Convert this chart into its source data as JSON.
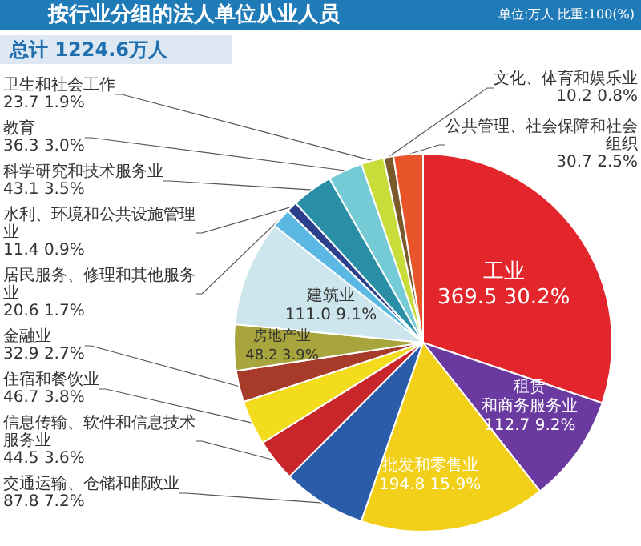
{
  "chart_data": {
    "type": "pie",
    "title": "按行业分组的法人单位从业人员",
    "subtitle": "单位:万人 比重:100(%)",
    "annotations": [
      "总计 1224.6万人"
    ],
    "categories": [
      "工业",
      "租赁和商务服务业",
      "批发和零售业",
      "交通运输、仓储和邮政业",
      "信息传输、软件和信息技术服务业",
      "住宿和餐饮业",
      "金融业",
      "房地产业",
      "建筑业",
      "居民服务、修理和其他服务业",
      "水利、环境和公共设施管理业",
      "科学研究和技术服务业",
      "教育",
      "卫生和社会工作",
      "文化、体育和娱乐业",
      "公共管理、社会保障和社会组织"
    ],
    "values": [
      369.5,
      112.7,
      194.8,
      87.8,
      44.5,
      46.7,
      32.9,
      48.2,
      111.0,
      20.6,
      11.4,
      43.1,
      36.3,
      23.7,
      10.2,
      30.7
    ],
    "value_labels": [
      "369.5 30.2%",
      "112.7 9.2%",
      "194.8 15.9%",
      "87.8 7.2%",
      "44.5 3.6%",
      "46.7 3.8%",
      "32.9 2.7%",
      "48.2 3.9%",
      "111.0 9.1%",
      "20.6 1.7%",
      "11.4 0.9%",
      "43.1 3.5%",
      "36.3 3.0%",
      "23.7 1.9%",
      "10.2 0.8%",
      "30.7 2.5%"
    ],
    "colors": [
      "#e3262b",
      "#6a3aa0",
      "#f2d01a",
      "#2a5caa",
      "#c9262c",
      "#f3dc1e",
      "#a83a2a",
      "#a8a53c",
      "#cde6ee",
      "#5bb8e3",
      "#2c3f8c",
      "#2a8fa6",
      "#74cbd6",
      "#c8dd3a",
      "#7a5a2a",
      "#e8552a"
    ]
  }
}
